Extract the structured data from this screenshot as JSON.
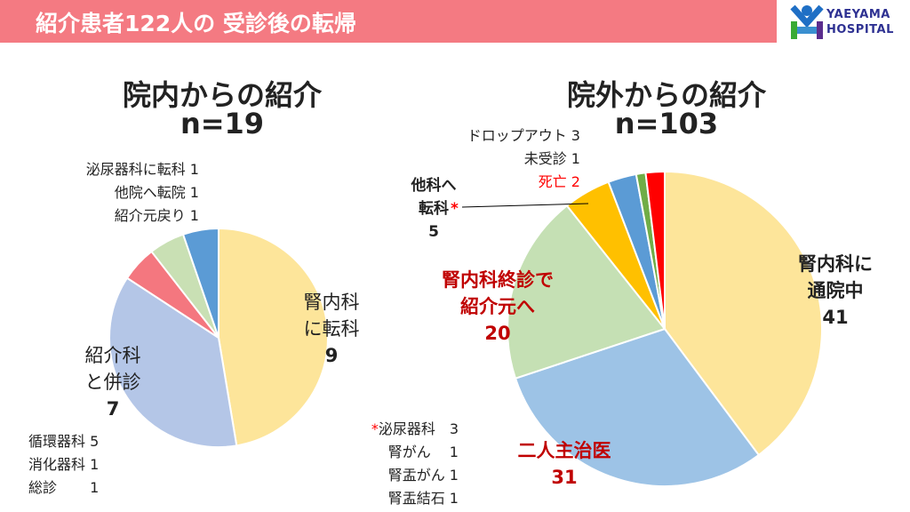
{
  "header": {
    "title": "紹介患者122人の 受診後の転帰"
  },
  "logo": {
    "line1": "YAEYAMA",
    "line2": "HOSPITAL"
  },
  "chart_data": [
    {
      "type": "pie",
      "title": "院内からの紹介",
      "subtitle": "n=19",
      "slices": [
        {
          "label": "腎内科に転科",
          "value": 9,
          "color": "#fde59a"
        },
        {
          "label": "紹介科と併診",
          "value": 7,
          "color": "#b4c6e7"
        },
        {
          "label": "泌尿器科に転科",
          "value": 1,
          "color": "#f4777f"
        },
        {
          "label": "他院へ転院",
          "value": 1,
          "color": "#c9e0b4"
        },
        {
          "label": "紹介元戻り",
          "value": 1,
          "color": "#5b9bd5"
        }
      ]
    },
    {
      "type": "pie",
      "title": "院外からの紹介",
      "subtitle": "n=103",
      "slices": [
        {
          "label": "腎内科に通院中",
          "value": 41,
          "color": "#fde59a"
        },
        {
          "label": "二人主治医",
          "value": 31,
          "color": "#9dc3e6"
        },
        {
          "label": "腎内科終診で紹介元へ",
          "value": 20,
          "color": "#c5e0b4"
        },
        {
          "label": "他科へ転科",
          "value": 5,
          "color": "#ffc000"
        },
        {
          "label": "ドロップアウト",
          "value": 3,
          "color": "#5b9bd5"
        },
        {
          "label": "未受診",
          "value": 1,
          "color": "#70ad47"
        },
        {
          "label": "死亡",
          "value": 2,
          "color": "#ff0000"
        }
      ]
    }
  ],
  "left": {
    "title": "院内からの紹介",
    "n": "n=19",
    "small": [
      "泌尿器科に転科 1",
      "他院へ転院 1",
      "紹介元戻り 1"
    ],
    "l1a": "腎内科",
    "l1b": "に転科",
    "l1n": "9",
    "l2a": "紹介科",
    "l2b": "と併診",
    "l2n": "7",
    "sub": [
      "循環器科 5",
      "消化器科 1",
      "総診　　 1"
    ]
  },
  "right": {
    "title": "院外からの紹介",
    "n": "n=103",
    "small": [
      "ドロップアウト 3",
      "未受診 1"
    ],
    "death": "死亡 2",
    "other_a": "他科へ",
    "other_b": "転科",
    "asterisk": "*",
    "other_n": "5",
    "end_a": "腎内科終診で",
    "end_b": "紹介元へ",
    "end_n": "20",
    "cont_a": "腎内科に",
    "cont_b": "通院中",
    "cont_n": "41",
    "two": "二人主治医",
    "two_n": "31",
    "sub": [
      "泌尿器科　3",
      "腎がん　 1",
      "腎盂がん 1",
      "腎盂結石 1"
    ]
  }
}
